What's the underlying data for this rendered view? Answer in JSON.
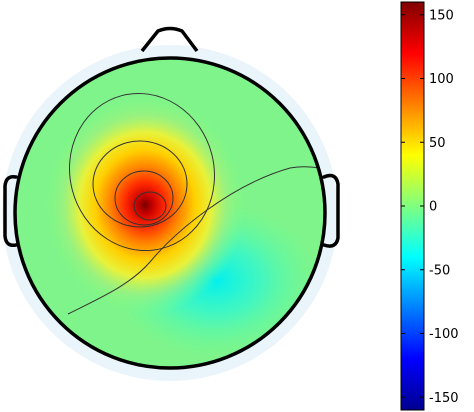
{
  "figure": {
    "type": "eeg-topographic-map",
    "colormap": "jet",
    "contours": true,
    "head_outline": true
  },
  "colorbar": {
    "range": [
      -160,
      160
    ],
    "ticks": [
      {
        "value": 150,
        "label": "150"
      },
      {
        "value": 100,
        "label": "100"
      },
      {
        "value": 50,
        "label": "50"
      },
      {
        "value": 0,
        "label": "0"
      },
      {
        "value": -50,
        "label": "-50"
      },
      {
        "value": -100,
        "label": "-100"
      },
      {
        "value": -150,
        "label": "-150"
      }
    ],
    "colors": [
      "#00008f",
      "#0000ff",
      "#00ffff",
      "#ffff00",
      "#ff0000",
      "#800000"
    ]
  }
}
